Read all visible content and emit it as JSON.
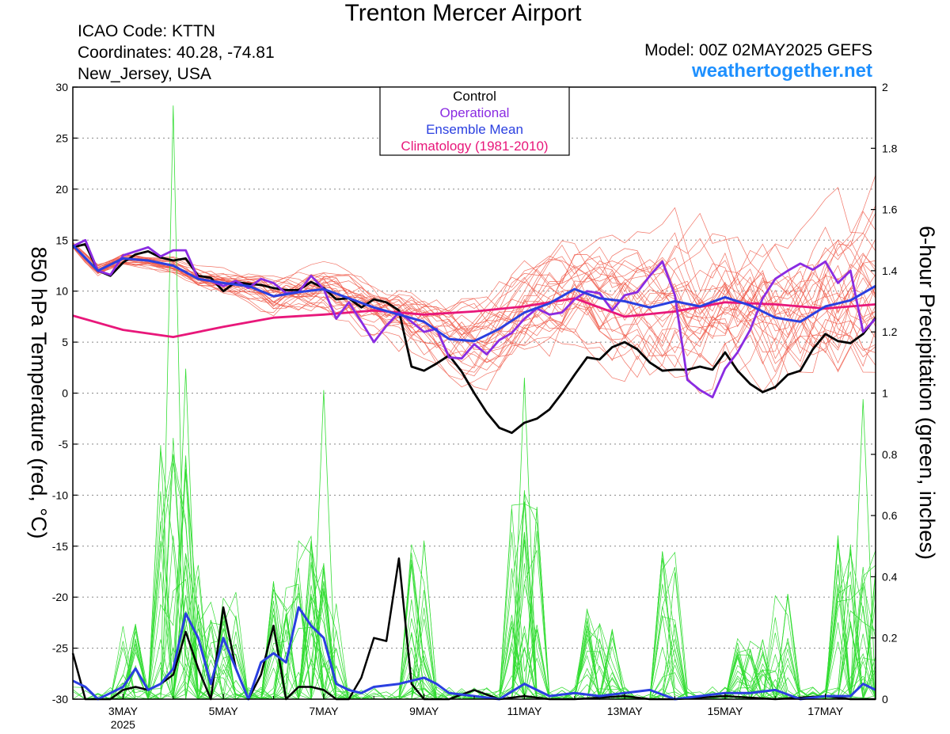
{
  "header": {
    "title": "Trenton Mercer Airport",
    "icao": "ICAO Code: KTTN",
    "coords": "Coordinates: 40.28, -74.81",
    "region": "New_Jersey, USA",
    "model": "Model: 00Z 02MAY2025 GEFS",
    "site": "weathertogether.net",
    "site_color": "#1e90ff"
  },
  "chart_data": {
    "type": "line",
    "ylabel_left": "850 hPa Temperature (red, °C)",
    "ylabel_right": "6-hour Precipitation (green, inches)",
    "xlim": [
      2.0,
      18.0
    ],
    "ylim_left": [
      -30,
      30
    ],
    "ylim_right": [
      0,
      2
    ],
    "yticks_left": [
      "30",
      "25",
      "20",
      "15",
      "10",
      "5",
      "0",
      "-5",
      "-10",
      "-15",
      "-20",
      "-25",
      "-30"
    ],
    "yticks_right": [
      "2",
      "1.8",
      "1.6",
      "1.4",
      "1.2",
      "1",
      "0.8",
      "0.6",
      "0.4",
      "0.2",
      "0"
    ],
    "xticks": [
      {
        "x": 3,
        "label": "3MAY",
        "sub": "2025"
      },
      {
        "x": 5,
        "label": "5MAY",
        "sub": ""
      },
      {
        "x": 7,
        "label": "7MAY",
        "sub": ""
      },
      {
        "x": 9,
        "label": "9MAY",
        "sub": ""
      },
      {
        "x": 11,
        "label": "11MAY",
        "sub": ""
      },
      {
        "x": 13,
        "label": "13MAY",
        "sub": ""
      },
      {
        "x": 15,
        "label": "15MAY",
        "sub": ""
      },
      {
        "x": 17,
        "label": "17MAY",
        "sub": ""
      }
    ],
    "grid": true,
    "legend_position": "top-center",
    "legend": [
      {
        "label": "Control",
        "color": "#000000"
      },
      {
        "label": "Operational",
        "color": "#8a2be2"
      },
      {
        "label": "Ensemble Mean",
        "color": "#2a3fe0"
      },
      {
        "label": "Climatology (1981-2010)",
        "color": "#e8177a"
      }
    ],
    "colors": {
      "members_temp": "#f05a4a",
      "members_precip": "#33dd33",
      "control": "#000000",
      "operational": "#8a2be2",
      "mean": "#2a3fe0",
      "climatology": "#e8177a"
    },
    "series": {
      "climatology": [
        [
          2.0,
          7.6
        ],
        [
          3.0,
          6.2
        ],
        [
          4.0,
          5.5
        ],
        [
          5.0,
          6.5
        ],
        [
          6.0,
          7.4
        ],
        [
          7.0,
          7.7
        ],
        [
          8.0,
          8.1
        ],
        [
          9.0,
          7.7
        ],
        [
          10.0,
          8.0
        ],
        [
          11.0,
          8.5
        ],
        [
          12.0,
          9.3
        ],
        [
          13.0,
          7.5
        ],
        [
          14.0,
          8.0
        ],
        [
          15.0,
          8.9
        ],
        [
          16.0,
          8.7
        ],
        [
          17.0,
          8.3
        ],
        [
          18.0,
          8.7
        ]
      ],
      "control": [
        [
          2.0,
          14.3
        ],
        [
          2.25,
          14.6
        ],
        [
          2.5,
          12.0
        ],
        [
          2.75,
          11.5
        ],
        [
          3.0,
          12.8
        ],
        [
          3.25,
          13.6
        ],
        [
          3.5,
          13.9
        ],
        [
          3.75,
          13.3
        ],
        [
          4.0,
          13.0
        ],
        [
          4.25,
          13.2
        ],
        [
          4.5,
          11.5
        ],
        [
          4.75,
          11.3
        ],
        [
          5.0,
          10.0
        ],
        [
          5.25,
          10.9
        ],
        [
          5.5,
          10.7
        ],
        [
          5.75,
          10.6
        ],
        [
          6.0,
          10.3
        ],
        [
          6.25,
          10.1
        ],
        [
          6.5,
          10.1
        ],
        [
          6.75,
          10.9
        ],
        [
          7.0,
          10.3
        ],
        [
          7.25,
          9.2
        ],
        [
          7.5,
          9.3
        ],
        [
          7.75,
          8.4
        ],
        [
          8.0,
          9.2
        ],
        [
          8.25,
          8.9
        ],
        [
          8.5,
          8.1
        ],
        [
          8.75,
          2.6
        ],
        [
          9.0,
          2.2
        ],
        [
          9.25,
          2.9
        ],
        [
          9.5,
          3.7
        ],
        [
          9.75,
          2.1
        ],
        [
          10.0,
          0.0
        ],
        [
          10.25,
          -1.9
        ],
        [
          10.5,
          -3.4
        ],
        [
          10.75,
          -3.9
        ],
        [
          11.0,
          -2.9
        ],
        [
          11.25,
          -2.5
        ],
        [
          11.5,
          -1.6
        ],
        [
          11.75,
          0.0
        ],
        [
          12.0,
          1.8
        ],
        [
          12.25,
          3.5
        ],
        [
          12.5,
          3.3
        ],
        [
          12.75,
          4.5
        ],
        [
          13.0,
          5.0
        ],
        [
          13.25,
          4.3
        ],
        [
          13.5,
          3.0
        ],
        [
          13.75,
          2.2
        ],
        [
          14.0,
          2.3
        ],
        [
          14.25,
          2.3
        ],
        [
          14.5,
          2.6
        ],
        [
          14.75,
          2.3
        ],
        [
          15.0,
          4.0
        ],
        [
          15.25,
          2.2
        ],
        [
          15.5,
          0.9
        ],
        [
          15.75,
          0.1
        ],
        [
          16.0,
          0.6
        ],
        [
          16.25,
          1.8
        ],
        [
          16.5,
          2.2
        ],
        [
          16.75,
          4.3
        ],
        [
          17.0,
          5.8
        ],
        [
          17.25,
          5.1
        ],
        [
          17.5,
          4.9
        ],
        [
          17.75,
          5.8
        ],
        [
          18.0,
          7.4
        ]
      ],
      "operational": [
        [
          2.0,
          14.4
        ],
        [
          2.25,
          15.0
        ],
        [
          2.5,
          12.0
        ],
        [
          2.75,
          11.6
        ],
        [
          3.0,
          13.5
        ],
        [
          3.25,
          13.9
        ],
        [
          3.5,
          14.3
        ],
        [
          3.75,
          13.4
        ],
        [
          4.0,
          14.0
        ],
        [
          4.25,
          14.0
        ],
        [
          4.5,
          11.2
        ],
        [
          4.75,
          11.0
        ],
        [
          5.0,
          10.5
        ],
        [
          5.25,
          11.0
        ],
        [
          5.5,
          10.3
        ],
        [
          5.75,
          11.2
        ],
        [
          6.0,
          10.8
        ],
        [
          6.25,
          9.8
        ],
        [
          6.5,
          9.9
        ],
        [
          6.75,
          11.5
        ],
        [
          7.0,
          10.2
        ],
        [
          7.25,
          7.3
        ],
        [
          7.5,
          8.9
        ],
        [
          7.75,
          7.0
        ],
        [
          8.0,
          5.0
        ],
        [
          8.25,
          6.6
        ],
        [
          8.5,
          7.9
        ],
        [
          8.75,
          7.0
        ],
        [
          9.0,
          6.0
        ],
        [
          9.25,
          6.3
        ],
        [
          9.5,
          3.5
        ],
        [
          9.75,
          3.4
        ],
        [
          10.0,
          4.8
        ],
        [
          10.25,
          3.8
        ],
        [
          10.5,
          5.2
        ],
        [
          10.75,
          5.9
        ],
        [
          11.0,
          7.3
        ],
        [
          11.25,
          8.3
        ],
        [
          11.5,
          7.7
        ],
        [
          11.75,
          7.9
        ],
        [
          12.0,
          9.2
        ],
        [
          12.25,
          10.0
        ],
        [
          12.5,
          9.8
        ],
        [
          12.75,
          8.1
        ],
        [
          13.0,
          9.6
        ],
        [
          13.25,
          9.9
        ],
        [
          13.5,
          11.5
        ],
        [
          13.75,
          12.9
        ],
        [
          14.0,
          9.6
        ],
        [
          14.25,
          1.3
        ],
        [
          14.5,
          0.3
        ],
        [
          14.75,
          -0.4
        ],
        [
          15.0,
          2.4
        ],
        [
          15.25,
          4.0
        ],
        [
          15.5,
          6.2
        ],
        [
          15.75,
          9.3
        ],
        [
          16.0,
          11.2
        ],
        [
          16.25,
          12.0
        ],
        [
          16.5,
          12.7
        ],
        [
          16.75,
          12.1
        ],
        [
          17.0,
          12.9
        ],
        [
          17.25,
          10.8
        ],
        [
          17.5,
          12.0
        ],
        [
          17.75,
          6.0
        ],
        [
          18.0,
          7.3
        ]
      ],
      "mean": [
        [
          2.0,
          14.5
        ],
        [
          2.5,
          12.0
        ],
        [
          3.0,
          13.2
        ],
        [
          3.5,
          13.0
        ],
        [
          4.0,
          12.5
        ],
        [
          4.5,
          11.2
        ],
        [
          5.0,
          10.8
        ],
        [
          5.5,
          10.5
        ],
        [
          6.0,
          9.5
        ],
        [
          6.5,
          9.9
        ],
        [
          7.0,
          10.2
        ],
        [
          7.5,
          9.3
        ],
        [
          8.0,
          8.4
        ],
        [
          8.5,
          7.7
        ],
        [
          9.0,
          7.0
        ],
        [
          9.5,
          5.3
        ],
        [
          10.0,
          5.1
        ],
        [
          10.5,
          6.3
        ],
        [
          11.0,
          7.9
        ],
        [
          11.5,
          8.8
        ],
        [
          12.0,
          10.2
        ],
        [
          12.5,
          9.3
        ],
        [
          13.0,
          9.0
        ],
        [
          13.5,
          8.4
        ],
        [
          14.0,
          9.0
        ],
        [
          14.5,
          8.5
        ],
        [
          15.0,
          9.4
        ],
        [
          15.5,
          8.6
        ],
        [
          16.0,
          7.4
        ],
        [
          16.5,
          7.0
        ],
        [
          17.0,
          8.5
        ],
        [
          17.5,
          9.1
        ],
        [
          18.0,
          10.5
        ]
      ],
      "control_precip": [
        [
          2.0,
          0.15
        ],
        [
          2.25,
          0.0
        ],
        [
          2.5,
          0.0
        ],
        [
          2.75,
          0.0
        ],
        [
          3.0,
          0.03
        ],
        [
          3.25,
          0.04
        ],
        [
          3.5,
          0.03
        ],
        [
          3.75,
          0.05
        ],
        [
          4.0,
          0.08
        ],
        [
          4.25,
          0.22
        ],
        [
          4.5,
          0.1
        ],
        [
          4.75,
          0.0
        ],
        [
          5.0,
          0.3
        ],
        [
          5.25,
          0.1
        ],
        [
          5.5,
          0.0
        ],
        [
          5.75,
          0.08
        ],
        [
          6.0,
          0.24
        ],
        [
          6.25,
          0.0
        ],
        [
          6.5,
          0.04
        ],
        [
          6.75,
          0.04
        ],
        [
          7.0,
          0.03
        ],
        [
          7.25,
          0.0
        ],
        [
          7.5,
          0.0
        ],
        [
          7.75,
          0.07
        ],
        [
          8.0,
          0.2
        ],
        [
          8.25,
          0.19
        ],
        [
          8.5,
          0.46
        ],
        [
          8.75,
          0.05
        ],
        [
          9.0,
          0.0
        ],
        [
          9.5,
          0.0
        ],
        [
          10.0,
          0.03
        ],
        [
          10.5,
          0.0
        ],
        [
          11.0,
          0.01
        ],
        [
          11.5,
          0.0
        ],
        [
          12.0,
          0.0
        ],
        [
          13.0,
          0.01
        ],
        [
          13.5,
          0.0
        ],
        [
          14.0,
          0.0
        ],
        [
          15.0,
          0.01
        ],
        [
          16.0,
          0.0
        ],
        [
          17.0,
          0.01
        ],
        [
          17.5,
          0.0
        ],
        [
          18.0,
          0.0
        ]
      ],
      "mean_precip": [
        [
          2.0,
          0.06
        ],
        [
          2.25,
          0.04
        ],
        [
          2.5,
          0.0
        ],
        [
          2.75,
          0.02
        ],
        [
          3.0,
          0.04
        ],
        [
          3.25,
          0.1
        ],
        [
          3.5,
          0.03
        ],
        [
          3.75,
          0.05
        ],
        [
          4.0,
          0.1
        ],
        [
          4.25,
          0.28
        ],
        [
          4.5,
          0.2
        ],
        [
          4.75,
          0.05
        ],
        [
          5.0,
          0.2
        ],
        [
          5.25,
          0.1
        ],
        [
          5.5,
          0.0
        ],
        [
          5.75,
          0.12
        ],
        [
          6.0,
          0.15
        ],
        [
          6.25,
          0.12
        ],
        [
          6.5,
          0.3
        ],
        [
          6.75,
          0.24
        ],
        [
          7.0,
          0.2
        ],
        [
          7.25,
          0.05
        ],
        [
          7.5,
          0.03
        ],
        [
          7.75,
          0.02
        ],
        [
          8.0,
          0.04
        ],
        [
          8.5,
          0.05
        ],
        [
          9.0,
          0.07
        ],
        [
          9.25,
          0.05
        ],
        [
          9.5,
          0.02
        ],
        [
          10.0,
          0.01
        ],
        [
          10.5,
          0.0
        ],
        [
          11.0,
          0.05
        ],
        [
          11.25,
          0.03
        ],
        [
          11.5,
          0.01
        ],
        [
          12.0,
          0.02
        ],
        [
          12.5,
          0.01
        ],
        [
          13.0,
          0.02
        ],
        [
          13.5,
          0.03
        ],
        [
          14.0,
          0.0
        ],
        [
          14.5,
          0.01
        ],
        [
          15.0,
          0.02
        ],
        [
          15.5,
          0.02
        ],
        [
          16.0,
          0.03
        ],
        [
          16.5,
          0.0
        ],
        [
          17.0,
          0.01
        ],
        [
          17.5,
          0.01
        ],
        [
          17.75,
          0.05
        ],
        [
          18.0,
          0.03
        ]
      ]
    }
  }
}
